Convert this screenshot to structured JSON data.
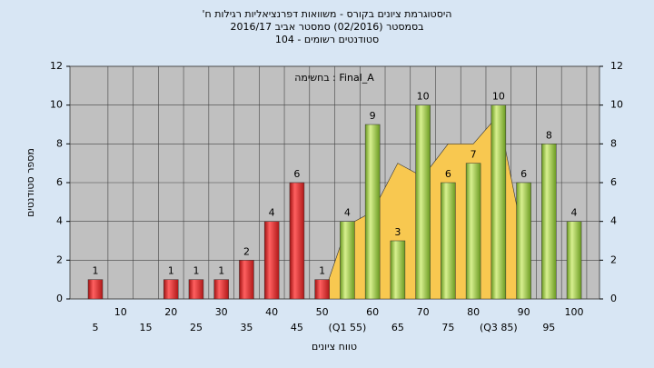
{
  "chart_data": {
    "type": "bar",
    "title": [
      "'היסטוגרמת ציונים בקורס - משוואות דפרנציאליות רגילות ח",
      "בסמסטר  (02/2016)  סמסטר אביב 2016/17",
      "סטודנטים רשומים - 104"
    ],
    "annotation": "בחשימה : Final_A",
    "x_label": "טווח ציונים",
    "y_label": "מספר סטודנטים",
    "categories": [
      "5",
      "10",
      "15",
      "20",
      "25",
      "30",
      "35",
      "40",
      "45",
      "50",
      "(Q1 55)",
      "60",
      "65",
      "70",
      "75",
      "80",
      "(Q3 85)",
      "90",
      "95",
      "100"
    ],
    "values": [
      1,
      null,
      null,
      1,
      1,
      1,
      2,
      4,
      6,
      1,
      4,
      9,
      3,
      10,
      6,
      7,
      10,
      6,
      8,
      4
    ],
    "colors": [
      "red",
      "red",
      "red",
      "red",
      "red",
      "red",
      "red",
      "red",
      "red",
      "red",
      "green",
      "green",
      "green",
      "green",
      "green",
      "green",
      "green",
      "green",
      "green",
      "green"
    ],
    "area": {
      "color": "#f8c850",
      "values": [
        null,
        null,
        null,
        null,
        null,
        null,
        null,
        null,
        null,
        0,
        3.8,
        4.5,
        7,
        6.3,
        8,
        8,
        9.5,
        3,
        null,
        null
      ]
    },
    "ylim": [
      0,
      12
    ],
    "yticks": [
      0,
      2,
      4,
      6,
      8,
      10,
      12
    ],
    "y2lim": [
      0,
      12
    ],
    "y2ticks": [
      0,
      2,
      4,
      6,
      8,
      10,
      12
    ]
  }
}
